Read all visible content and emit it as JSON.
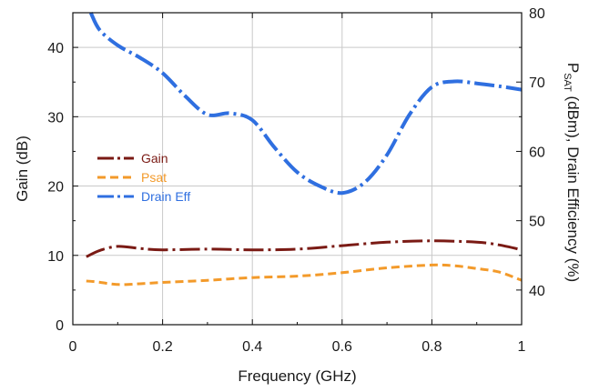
{
  "chart_data": {
    "type": "line",
    "title": "",
    "xlabel": "Frequency (GHz)",
    "ylabel": "Gain (dB)",
    "y2label_main": "P",
    "y2label_sub": "SAT",
    "y2label_rest": " (dBm), Drain Efficiency (%)",
    "xlim": [
      0,
      1
    ],
    "ylim": [
      0,
      45
    ],
    "y2lim": [
      35,
      80
    ],
    "grid": true,
    "legend_position": "center-left",
    "x_ticks": [
      "0",
      "0.2",
      "0.4",
      "0.6",
      "0.8",
      "1"
    ],
    "y_ticks": [
      "0",
      "10",
      "20",
      "30",
      "40"
    ],
    "y2_ticks": [
      "40",
      "50",
      "60",
      "70",
      "80"
    ],
    "series": [
      {
        "name": "Gain",
        "axis": "left",
        "color": "#7a1a14",
        "style": "dash-dot",
        "x": [
          0.03,
          0.06,
          0.1,
          0.15,
          0.2,
          0.3,
          0.4,
          0.5,
          0.6,
          0.7,
          0.8,
          0.9,
          0.95,
          1.0
        ],
        "y": [
          9.8,
          10.7,
          11.3,
          11.0,
          10.8,
          10.9,
          10.8,
          10.9,
          11.4,
          11.9,
          12.1,
          11.9,
          11.5,
          10.8
        ]
      },
      {
        "name": "Psat",
        "axis": "right",
        "color": "#f39a2a",
        "style": "dash",
        "x": [
          0.03,
          0.05,
          0.1,
          0.15,
          0.2,
          0.3,
          0.4,
          0.5,
          0.6,
          0.7,
          0.8,
          0.85,
          0.9,
          0.95,
          1.0
        ],
        "y": [
          41.3,
          41.2,
          40.8,
          40.9,
          41.1,
          41.4,
          41.8,
          42.0,
          42.5,
          43.2,
          43.6,
          43.5,
          43.1,
          42.6,
          41.4
        ]
      },
      {
        "name": "Drain Eff",
        "axis": "right",
        "color": "#2f6fe0",
        "style": "dash-dot",
        "x": [
          0.04,
          0.06,
          0.1,
          0.15,
          0.2,
          0.25,
          0.3,
          0.35,
          0.4,
          0.45,
          0.5,
          0.55,
          0.6,
          0.65,
          0.7,
          0.75,
          0.8,
          0.85,
          0.9,
          0.95,
          1.0
        ],
        "y": [
          80.0,
          77.5,
          75.3,
          73.5,
          71.3,
          68.0,
          65.3,
          65.5,
          64.5,
          60.5,
          57.0,
          55.0,
          54.0,
          55.5,
          59.5,
          65.3,
          69.3,
          70.1,
          69.8,
          69.4,
          68.9
        ]
      }
    ]
  }
}
